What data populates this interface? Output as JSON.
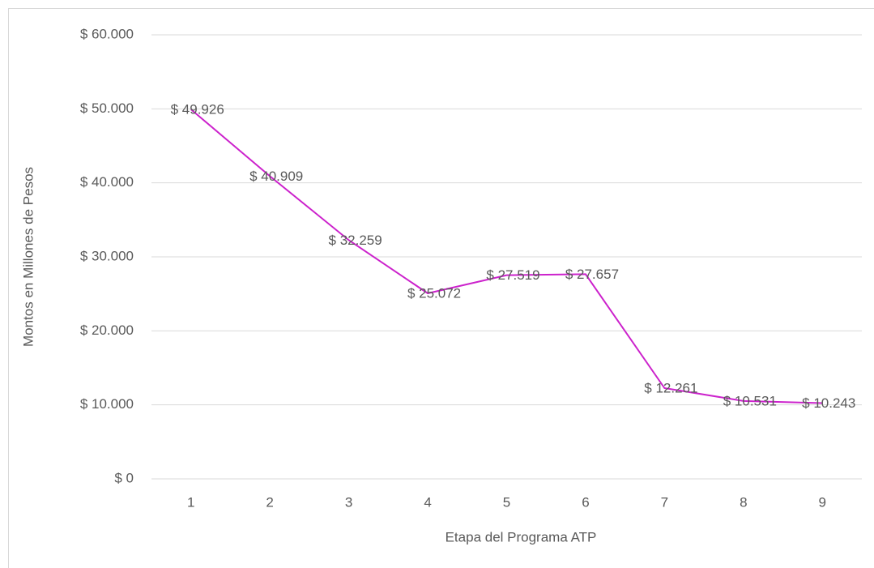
{
  "chart_data": {
    "type": "line",
    "x_label": "Etapa del Programa ATP",
    "y_label": "Montos en Millones de Pesos",
    "categories": [
      "1",
      "2",
      "3",
      "4",
      "5",
      "6",
      "7",
      "8",
      "9"
    ],
    "series": [
      {
        "name": "Montos",
        "color": "#cc22cc",
        "values": [
          49926,
          40909,
          32259,
          25072,
          27519,
          27657,
          12261,
          10531,
          10243
        ],
        "value_labels": [
          "$ 49.926",
          "$ 40.909",
          "$ 32.259",
          "$ 25.072",
          "$ 27.519",
          "$ 27.657",
          "$ 12.261",
          "$ 10.531",
          "$ 10.243"
        ]
      }
    ],
    "ylim": [
      0,
      60000
    ],
    "yticks": [
      {
        "value": 0,
        "label": "$ 0"
      },
      {
        "value": 10000,
        "label": "$ 10.000"
      },
      {
        "value": 20000,
        "label": "$ 20.000"
      },
      {
        "value": 30000,
        "label": "$ 30.000"
      },
      {
        "value": 40000,
        "label": "$ 40.000"
      },
      {
        "value": 50000,
        "label": "$ 50.000"
      },
      {
        "value": 60000,
        "label": "$ 60.000"
      }
    ],
    "grid": true
  }
}
